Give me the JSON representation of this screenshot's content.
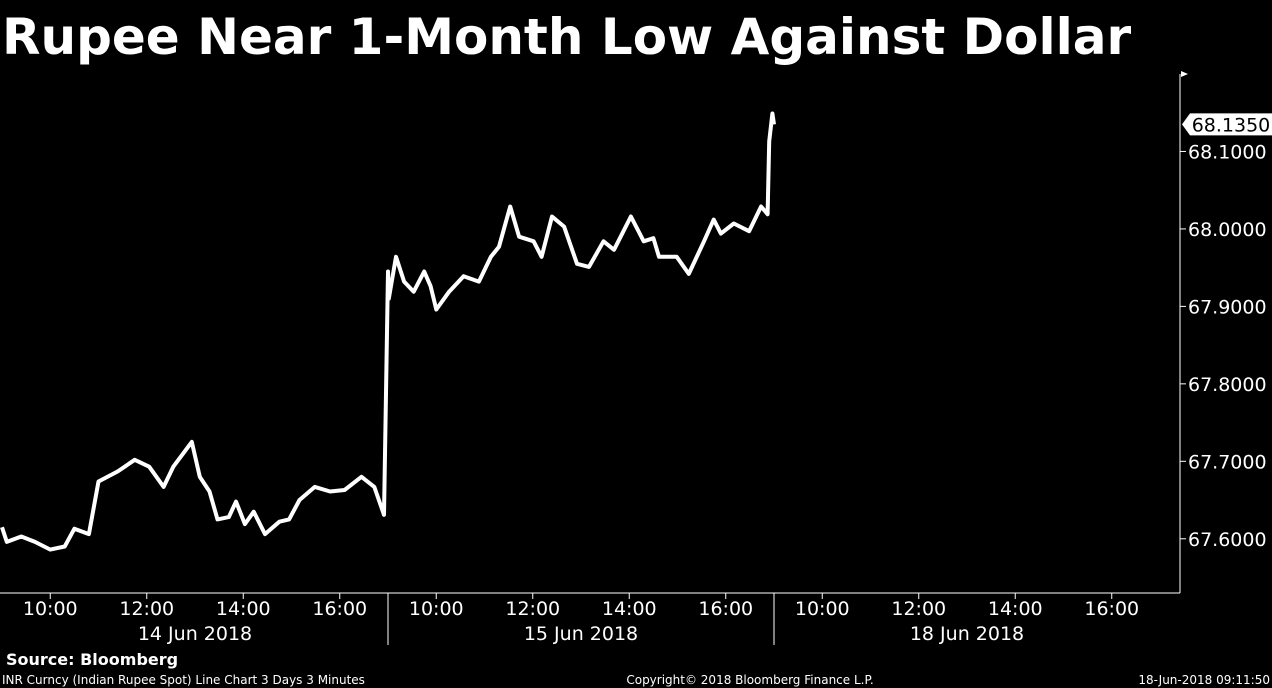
{
  "chart_data": {
    "type": "line",
    "title": "Rupee Near 1-Month Low Against Dollar",
    "source": "Source: Bloomberg",
    "footer_left": "INR Curncy (Indian Rupee Spot) Line Chart 3 Days 3 Minutes",
    "footer_center": "Copyright© 2018 Bloomberg Finance L.P.",
    "footer_right": "18-Jun-2018 09:11:50",
    "days": [
      "14 Jun 2018",
      "15 Jun 2018",
      "18 Jun 2018"
    ],
    "xticks": [
      "10:00",
      "12:00",
      "14:00",
      "16:00"
    ],
    "xlim": [
      "14 Jun 2018 09:00",
      "18 Jun 2018 17:00"
    ],
    "ylim": [
      67.53,
      68.2
    ],
    "yticks": [
      {
        "value": 67.6,
        "label": "67.6000"
      },
      {
        "value": 67.7,
        "label": "67.7000"
      },
      {
        "value": 67.8,
        "label": "67.8000"
      },
      {
        "value": 67.9,
        "label": "67.9000"
      },
      {
        "value": 68.0,
        "label": "68.0000"
      },
      {
        "value": 68.1,
        "label": "68.1000"
      }
    ],
    "last_value_label": "68.1350",
    "color": "#ffffff",
    "x": [
      "14 Jun 2018 09:00",
      "14 Jun 2018 09:06",
      "14 Jun 2018 09:24",
      "14 Jun 2018 09:41",
      "14 Jun 2018 10:00",
      "14 Jun 2018 10:18",
      "14 Jun 2018 10:30",
      "14 Jun 2018 10:48",
      "14 Jun 2018 11:00",
      "14 Jun 2018 11:24",
      "14 Jun 2018 11:45",
      "14 Jun 2018 12:03",
      "14 Jun 2018 12:21",
      "14 Jun 2018 12:33",
      "14 Jun 2018 12:56",
      "14 Jun 2018 13:06",
      "14 Jun 2018 13:18",
      "14 Jun 2018 13:28",
      "14 Jun 2018 13:42",
      "14 Jun 2018 13:51",
      "14 Jun 2018 14:02",
      "14 Jun 2018 14:13",
      "14 Jun 2018 14:27",
      "14 Jun 2018 14:45",
      "14 Jun 2018 14:57",
      "14 Jun 2018 15:10",
      "14 Jun 2018 15:29",
      "14 Jun 2018 15:48",
      "14 Jun 2018 16:06",
      "14 Jun 2018 16:27",
      "14 Jun 2018 16:43",
      "14 Jun 2018 16:55",
      "15 Jun 2018 09:00",
      "15 Jun 2018 09:01",
      "15 Jun 2018 09:10",
      "15 Jun 2018 09:20",
      "15 Jun 2018 09:32",
      "15 Jun 2018 09:45",
      "15 Jun 2018 09:53",
      "15 Jun 2018 10:00",
      "15 Jun 2018 10:16",
      "15 Jun 2018 10:34",
      "15 Jun 2018 10:53",
      "15 Jun 2018 11:08",
      "15 Jun 2018 11:18",
      "15 Jun 2018 11:32",
      "15 Jun 2018 11:43",
      "15 Jun 2018 12:01",
      "15 Jun 2018 12:11",
      "15 Jun 2018 12:24",
      "15 Jun 2018 12:39",
      "15 Jun 2018 12:55",
      "15 Jun 2018 13:10",
      "15 Jun 2018 13:28",
      "15 Jun 2018 13:41",
      "15 Jun 2018 14:02",
      "15 Jun 2018 14:18",
      "15 Jun 2018 14:30",
      "15 Jun 2018 14:37",
      "15 Jun 2018 14:59",
      "15 Jun 2018 15:14",
      "15 Jun 2018 15:33",
      "15 Jun 2018 15:45",
      "15 Jun 2018 15:54",
      "15 Jun 2018 16:10",
      "15 Jun 2018 16:29",
      "15 Jun 2018 16:44",
      "15 Jun 2018 16:52",
      "15 Jun 2018 16:54",
      "15 Jun 2018 16:58",
      "15 Jun 2018 17:00"
    ],
    "values": [
      67.615,
      67.596,
      67.603,
      67.596,
      67.586,
      67.59,
      67.613,
      67.606,
      67.674,
      67.687,
      67.702,
      67.693,
      67.667,
      67.693,
      67.725,
      67.68,
      67.661,
      67.625,
      67.628,
      67.648,
      67.619,
      67.635,
      67.606,
      67.622,
      67.625,
      67.65,
      67.667,
      67.661,
      67.663,
      67.68,
      67.667,
      67.631,
      67.945,
      67.91,
      67.964,
      67.932,
      67.919,
      67.945,
      67.926,
      67.896,
      67.919,
      67.939,
      67.932,
      67.964,
      67.977,
      68.029,
      67.99,
      67.984,
      67.964,
      68.016,
      68.003,
      67.955,
      67.951,
      67.984,
      67.973,
      68.016,
      67.984,
      67.988,
      67.964,
      67.964,
      67.942,
      67.984,
      68.012,
      67.994,
      68.007,
      67.997,
      68.029,
      68.019,
      68.113,
      68.149,
      68.135
    ]
  }
}
